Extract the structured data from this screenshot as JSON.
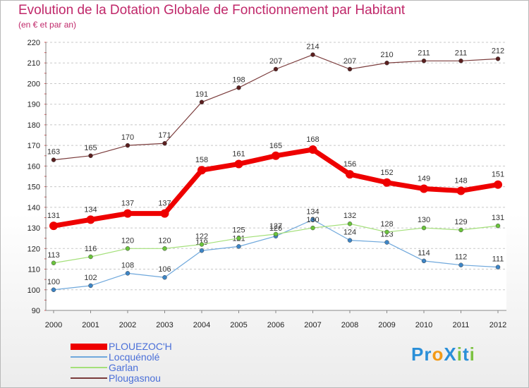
{
  "header": {
    "title": "Evolution de la Dotation Globale de Fonctionnement par Habitant",
    "subtitle": "(en € et par an)"
  },
  "logo_text": "Proxiti",
  "logo_letters": [
    {
      "ch": "P",
      "color": "#2a8fd8"
    },
    {
      "ch": "r",
      "color": "#2a8fd8"
    },
    {
      "ch": "o",
      "color": "#f29a17"
    },
    {
      "ch": "X",
      "color": "#2a8fd8"
    },
    {
      "ch": "i",
      "color": "#7cc242"
    },
    {
      "ch": "t",
      "color": "#2a8fd8"
    },
    {
      "ch": "i",
      "color": "#7cc242"
    }
  ],
  "chart_data": {
    "type": "line",
    "title": "Evolution de la Dotation Globale de Fonctionnement par Habitant",
    "subtitle": "(en € et par an)",
    "xlabel": "",
    "ylabel": "",
    "x": [
      "2000",
      "2001",
      "2002",
      "2003",
      "2004",
      "2005",
      "2006",
      "2007",
      "2008",
      "2009",
      "2010",
      "2011",
      "2012"
    ],
    "ylim": [
      90,
      220
    ],
    "yticks": [
      90,
      100,
      110,
      120,
      130,
      140,
      150,
      160,
      170,
      180,
      190,
      200,
      210,
      220
    ],
    "grid": "horizontal dashed",
    "legend_position": "bottom-left",
    "series": [
      {
        "name": "PLOUEZOC'H",
        "color": "#ee0000",
        "marker": "#ee0000",
        "emphasis": true,
        "values": [
          131,
          134,
          137,
          137,
          158,
          161,
          165,
          168,
          156,
          152,
          149,
          148,
          151
        ]
      },
      {
        "name": "Locquénolé",
        "color": "#6fa8dc",
        "marker": "#3d85c6",
        "emphasis": false,
        "values": [
          100,
          102,
          108,
          106,
          119,
          121,
          126,
          134,
          124,
          123,
          114,
          112,
          111
        ]
      },
      {
        "name": "Garlan",
        "color": "#a4e07a",
        "marker": "#6ac33c",
        "emphasis": false,
        "values": [
          113,
          116,
          120,
          120,
          122,
          125,
          127,
          130,
          132,
          128,
          130,
          129,
          131
        ]
      },
      {
        "name": "Plougasnou",
        "color": "#7a3b3b",
        "marker": "#5a1f1f",
        "emphasis": false,
        "values": [
          163,
          165,
          170,
          171,
          191,
          198,
          207,
          214,
          207,
          210,
          211,
          211,
          212
        ]
      }
    ]
  }
}
